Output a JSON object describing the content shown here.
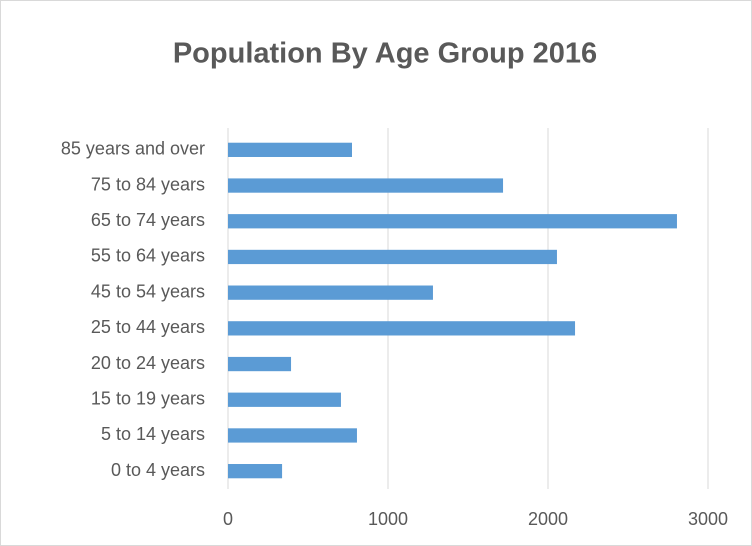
{
  "chart_data": {
    "type": "barh",
    "title": "Population By Age Group 2016",
    "categories": [
      "0 to 4 years",
      "5 to 14 years",
      "15 to 19 years",
      "20 to 24 years",
      "25 to 44 years",
      "45 to 54 years",
      "55 to 64 years",
      "65 to 74 years",
      "75 to 84 years",
      "85 years and over"
    ],
    "values": [
      338,
      806,
      706,
      394,
      2169,
      1281,
      2056,
      2806,
      1719,
      775
    ],
    "color": "#5b9bd5",
    "xlim": [
      0,
      3000
    ],
    "xticks": [
      0,
      1000,
      2000,
      3000
    ],
    "grid": true
  }
}
